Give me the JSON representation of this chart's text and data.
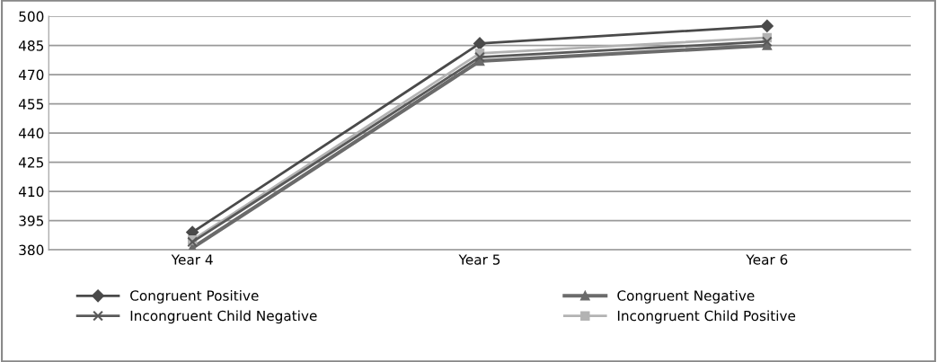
{
  "chart_data": {
    "type": "line",
    "categories": [
      "Year 4",
      "Year 5",
      "Year 6"
    ],
    "series": [
      {
        "name": "Congruent Positive",
        "color": "#4a4a4a",
        "marker": "diamond",
        "values": [
          389,
          486,
          495
        ]
      },
      {
        "name": "Congruent Negative",
        "color": "#6b6b6b",
        "marker": "triangle",
        "values": [
          381,
          477,
          485
        ]
      },
      {
        "name": "Incongruent Child Negative",
        "color": "#595959",
        "marker": "cross",
        "values": [
          384,
          479,
          487
        ]
      },
      {
        "name": "Incongruent Child Positive",
        "color": "#b3b3b3",
        "marker": "square",
        "values": [
          385,
          481,
          489
        ]
      }
    ],
    "ylim": [
      380,
      500
    ],
    "yticks": [
      380,
      395,
      410,
      425,
      440,
      455,
      470,
      485,
      500
    ],
    "grid": "y",
    "legend": "bottom",
    "line_style": "solid"
  }
}
